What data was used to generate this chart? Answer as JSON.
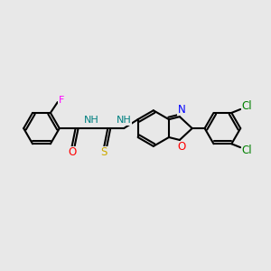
{
  "background_color": "#e8e8e8",
  "bond_color": "#000000",
  "atom_colors": {
    "F": "#ff00ff",
    "O": "#ff0000",
    "N": "#0000ff",
    "H_teal": "#008080",
    "S": "#ccaa00",
    "Cl": "#008000"
  },
  "figsize": [
    3.0,
    3.0
  ],
  "dpi": 100
}
